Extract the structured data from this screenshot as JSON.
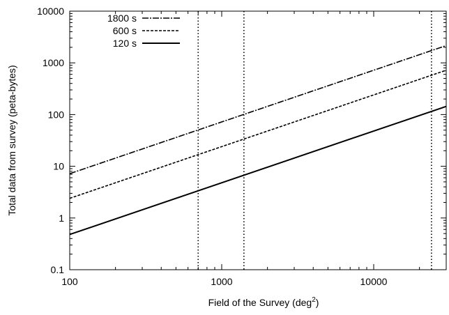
{
  "chart_data": {
    "type": "line",
    "title": "",
    "xlabel": "Field of the Survey (deg",
    "xlabel_sup": "2",
    "xlabel_close": ")",
    "ylabel": "Total data from survey (peta-bytes)",
    "xscale": "log",
    "yscale": "log",
    "xlim": [
      100,
      30000
    ],
    "ylim": [
      0.1,
      10000
    ],
    "grid": false,
    "legend_position": "top-left",
    "x_ticks": [
      {
        "value": 100,
        "label": "100"
      },
      {
        "value": 1000,
        "label": "1000"
      },
      {
        "value": 10000,
        "label": "10000"
      }
    ],
    "y_ticks": [
      {
        "value": 0.1,
        "label": "0.1"
      },
      {
        "value": 1,
        "label": "1"
      },
      {
        "value": 10,
        "label": "10"
      },
      {
        "value": 100,
        "label": "100"
      },
      {
        "value": 1000,
        "label": "1000"
      },
      {
        "value": 10000,
        "label": "10000"
      }
    ],
    "series": [
      {
        "name": "1800 s",
        "style": "dash-dot",
        "color": "#000000",
        "x": [
          100,
          30000
        ],
        "y": [
          7.2,
          2160
        ]
      },
      {
        "name": "600 s",
        "style": "dashed",
        "color": "#000000",
        "x": [
          100,
          30000
        ],
        "y": [
          2.4,
          720
        ]
      },
      {
        "name": "120 s",
        "style": "solid",
        "color": "#000000",
        "x": [
          100,
          30000
        ],
        "y": [
          0.48,
          144
        ]
      }
    ],
    "vertical_lines": [
      {
        "x": 700,
        "style": "dotted"
      },
      {
        "x": 1400,
        "style": "dotted"
      },
      {
        "x": 24000,
        "style": "dotted"
      }
    ]
  }
}
